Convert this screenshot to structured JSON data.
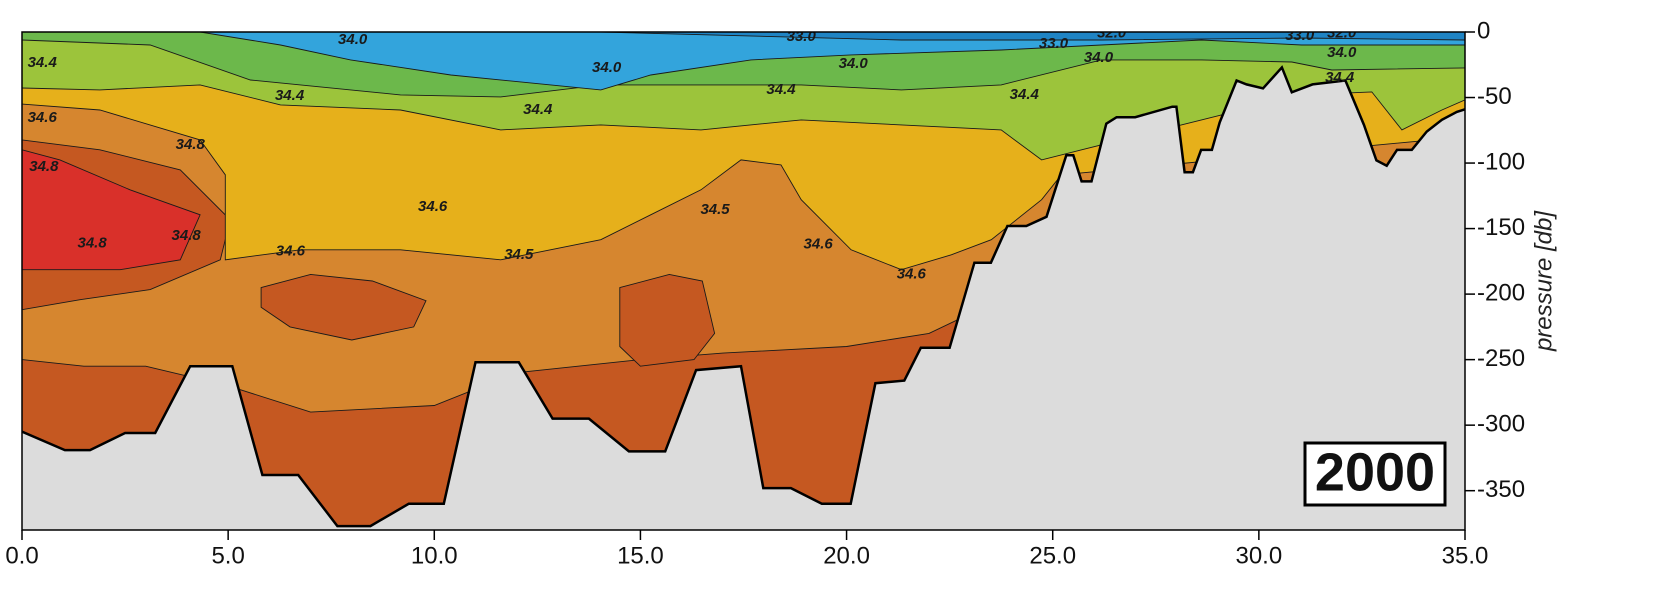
{
  "chart_data": {
    "type": "contour",
    "ylabel": "pressure [db]",
    "annotation": "2000",
    "xlim": [
      0,
      35
    ],
    "ylim": [
      -380,
      0
    ],
    "xticks": [
      {
        "value": 0,
        "label": "0.0"
      },
      {
        "value": 5,
        "label": "5.0"
      },
      {
        "value": 10,
        "label": "10.0"
      },
      {
        "value": 15,
        "label": "15.0"
      },
      {
        "value": 20,
        "label": "20.0"
      },
      {
        "value": 25,
        "label": "25.0"
      },
      {
        "value": 30,
        "label": "30.0"
      },
      {
        "value": 35,
        "label": "35.0"
      }
    ],
    "yticks": [
      0,
      -50,
      -100,
      -150,
      -200,
      -250,
      -300,
      -350
    ],
    "base_color": "#c55821",
    "layers": [
      {
        "shape": "area",
        "color": "#d6862f",
        "x": [
          0,
          1.5,
          3,
          5,
          7,
          10,
          12,
          15,
          17,
          20,
          22,
          24,
          35
        ],
        "y": [
          -250,
          -255,
          -255,
          -270,
          -290,
          -285,
          -260,
          -250,
          -245,
          -240,
          -230,
          -200,
          -200
        ]
      },
      {
        "shape": "patch",
        "color": "#c55821",
        "x": [
          5.8,
          7,
          8.5,
          9.8,
          9.5,
          8,
          6.5,
          5.8
        ],
        "y": [
          -195,
          -185,
          -190,
          -205,
          -225,
          -235,
          -225,
          -210
        ]
      },
      {
        "shape": "patch",
        "color": "#c55821",
        "x": [
          14.5,
          15.7,
          16.5,
          16.8,
          16.3,
          15,
          14.5
        ],
        "y": [
          -195,
          -185,
          -190,
          -230,
          -250,
          -255,
          -240
        ]
      },
      {
        "shape": "patch",
        "color": "#c55821",
        "x": [
          0,
          1.89,
          3.84,
          5.05,
          4.81,
          3.11,
          1.41,
          0
        ],
        "y": [
          -82.3,
          -89.9,
          -105.2,
          -143.3,
          -173.8,
          -196.6,
          -204.3,
          -211.9
        ]
      },
      {
        "shape": "patch",
        "color": "#d9302a",
        "x": [
          0,
          0.92,
          2.62,
          4.32,
          3.84,
          2.38,
          0.92,
          0
        ],
        "y": [
          -89.9,
          -97.6,
          -120.4,
          -139.5,
          -173.8,
          -181.4,
          -181.4,
          -181.4
        ]
      },
      {
        "shape": "area",
        "color": "#e6b01b",
        "x": [
          0,
          1.89,
          4.32,
          4.93,
          4.93,
          6.75,
          9.18,
          11.61,
          14.04,
          15.25,
          16.47,
          17.44,
          18.41,
          18.9,
          20.11,
          21.33,
          22.54,
          23.51,
          24.73,
          25.21,
          35
        ],
        "y": [
          -55,
          -59.5,
          -82.3,
          -109,
          -173.8,
          -166.2,
          -166.2,
          -173.8,
          -158.5,
          -139.5,
          -120.4,
          -97.6,
          -101.4,
          -128,
          -166.2,
          -181.4,
          -170,
          -158.5,
          -128,
          -109,
          -80
        ]
      },
      {
        "shape": "area",
        "color": "#9cc43b",
        "x": [
          0,
          1.89,
          4.32,
          6.27,
          9.18,
          11.61,
          14.04,
          16.47,
          18.9,
          21.33,
          23.75,
          24.73,
          25.7,
          28.61,
          31.04,
          32.74,
          33.47,
          34.44,
          35
        ],
        "y": [
          -42.7,
          -44.2,
          -40.4,
          -55.6,
          -59.5,
          -74.7,
          -70.9,
          -74.7,
          -67.1,
          -70.9,
          -74.7,
          -97.6,
          -89.9,
          -67.1,
          -48,
          -45.7,
          -74.7,
          -59.5,
          -51.8
        ]
      },
      {
        "shape": "area",
        "color": "#6cb84b",
        "x": [
          0,
          3.11,
          5.54,
          9.18,
          11.61,
          14.04,
          16.47,
          18.9,
          21.33,
          23.75,
          26.18,
          28.61,
          30.8,
          31.77,
          35
        ],
        "y": [
          -6.1,
          -9.9,
          -36.6,
          -48,
          -49.5,
          -40.4,
          -40.4,
          -40.4,
          -44.2,
          -40.4,
          -21.3,
          -21.3,
          -22.9,
          -29,
          -27.4
        ]
      },
      {
        "shape": "area",
        "color": "#33a4dc",
        "x": [
          0,
          4.32,
          6.27,
          7.97,
          10.4,
          14.04,
          15.25,
          17.68,
          20.11,
          23.75,
          26.18,
          28.61,
          31.04,
          35
        ],
        "y": [
          0,
          0,
          -9.9,
          -21.3,
          -32.8,
          -44.2,
          -32.8,
          -21.3,
          -17.5,
          -13.7,
          -9.9,
          -6.1,
          -9.9,
          -9.9
        ]
      },
      {
        "shape": "area",
        "color": "#1f84c4",
        "x": [
          0,
          14.04,
          21.33,
          26.18,
          31.04,
          35
        ],
        "y": [
          0,
          0,
          -6.1,
          -6.1,
          -4.6,
          -6.1
        ]
      }
    ],
    "bottom": {
      "color": "#dcdcdc",
      "x": [
        0,
        1.04,
        1.65,
        2.5,
        3.23,
        4.08,
        5.1,
        5.83,
        6.7,
        7.65,
        8.45,
        9.38,
        10.23,
        11.0,
        12.05,
        12.87,
        13.75,
        14.72,
        15.6,
        16.35,
        17.44,
        17.98,
        18.65,
        19.4,
        20.1,
        20.7,
        21.4,
        21.8,
        22.5,
        23.1,
        23.5,
        23.9,
        24.36,
        24.85,
        25.33,
        25.5,
        25.7,
        25.94,
        26.3,
        26.55,
        27,
        27.9,
        28.0,
        28.2,
        28.4,
        28.6,
        28.86,
        29.05,
        29.46,
        29.7,
        30.1,
        30.56,
        30.8,
        31.3,
        32.1,
        32.55,
        32.85,
        33.1,
        33.35,
        33.71,
        34.07,
        34.44,
        34.8,
        35
      ],
      "y": [
        -305,
        -319,
        -319,
        -306,
        -306,
        -255,
        -255,
        -338,
        -338,
        -377,
        -377,
        -360,
        -360,
        -252,
        -252,
        -295,
        -295,
        -320,
        -320,
        -258,
        -255,
        -348,
        -348,
        -360,
        -360,
        -268,
        -266,
        -241,
        -241,
        -176,
        -176,
        -148,
        -148,
        -141,
        -94,
        -94,
        -114,
        -114,
        -70,
        -65,
        -65,
        -57,
        -57,
        -107,
        -107,
        -90,
        -90,
        -69,
        -37,
        -40,
        -43,
        -27,
        -46,
        -40,
        -37,
        -71,
        -98,
        -102,
        -90,
        -90,
        -76,
        -67,
        -61,
        -59
      ]
    },
    "contour_labels": [
      {
        "text": "34.0",
        "x": 8.02,
        "y": -6.1
      },
      {
        "text": "33.0",
        "x": 18.9,
        "y": -3.8
      },
      {
        "text": "33.0",
        "x": 25.02,
        "y": -9.1
      },
      {
        "text": "32.0",
        "x": 26.43,
        "y": -1
      },
      {
        "text": "33.0",
        "x": 30.99,
        "y": -3
      },
      {
        "text": "32.0",
        "x": 32.01,
        "y": -1
      },
      {
        "text": "34.0",
        "x": 32.01,
        "y": -16
      },
      {
        "text": "34.0",
        "x": 14.18,
        "y": -27.4
      },
      {
        "text": "34.0",
        "x": 20.16,
        "y": -24.4
      },
      {
        "text": "34.0",
        "x": 26.11,
        "y": -19.8
      },
      {
        "text": "34.4",
        "x": 31.96,
        "y": -35.1
      },
      {
        "text": "34.4",
        "x": 0.49,
        "y": -23.6
      },
      {
        "text": "34.4",
        "x": 6.49,
        "y": -48.8
      },
      {
        "text": "34.4",
        "x": 12.51,
        "y": -59.5
      },
      {
        "text": "34.4",
        "x": 18.41,
        "y": -44.2
      },
      {
        "text": "34.4",
        "x": 24.31,
        "y": -48
      },
      {
        "text": "34.6",
        "x": 0.49,
        "y": -65.5
      },
      {
        "text": "34.8",
        "x": 4.08,
        "y": -86.1
      },
      {
        "text": "34.8",
        "x": 0.53,
        "y": -102.9
      },
      {
        "text": "34.8",
        "x": 1.7,
        "y": -161.6
      },
      {
        "text": "34.8",
        "x": 3.98,
        "y": -155.5
      },
      {
        "text": "34.6",
        "x": 9.96,
        "y": -133.4
      },
      {
        "text": "34.6",
        "x": 6.51,
        "y": -167.7
      },
      {
        "text": "34.5",
        "x": 12.05,
        "y": -170
      },
      {
        "text": "34.5",
        "x": 16.81,
        "y": -135.7
      },
      {
        "text": "34.6",
        "x": 19.31,
        "y": -162.3
      },
      {
        "text": "34.6",
        "x": 21.57,
        "y": -185.2
      }
    ]
  }
}
